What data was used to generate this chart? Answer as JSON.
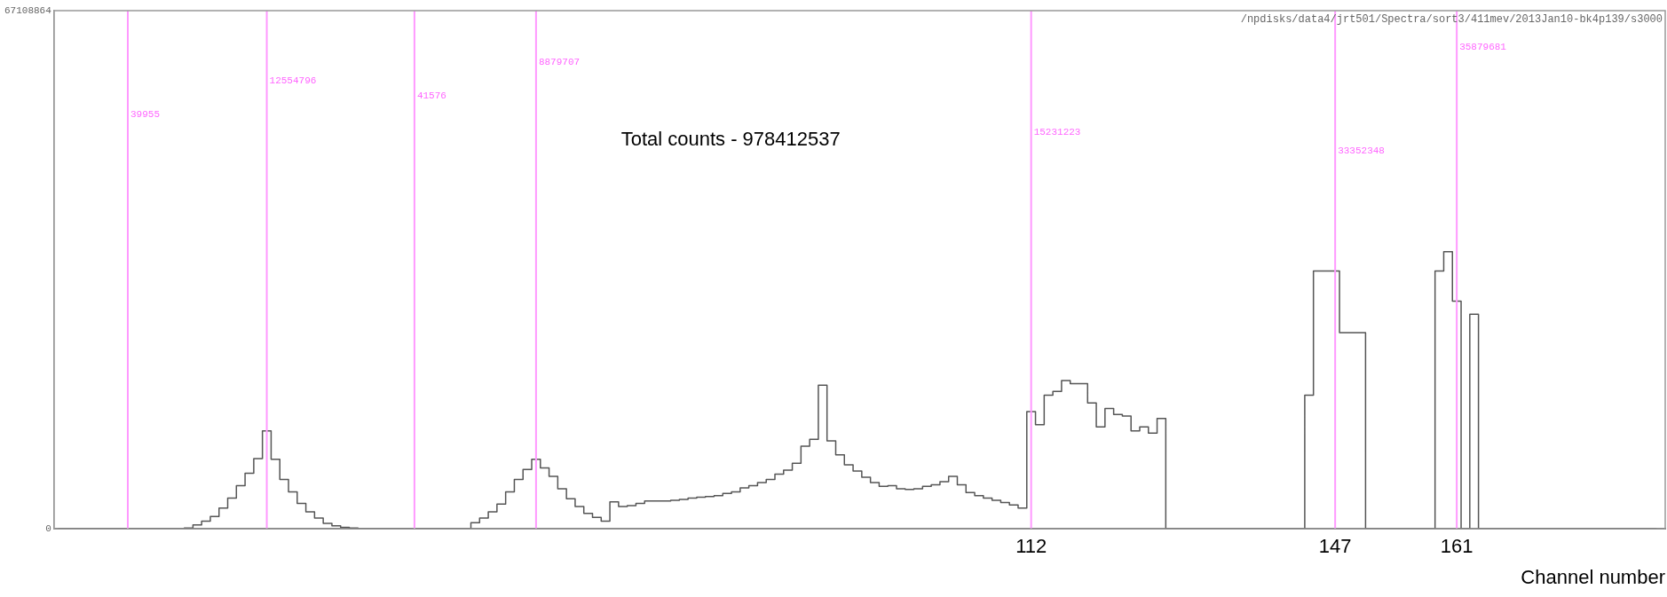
{
  "chart_data": {
    "type": "step",
    "xlabel": "Channel number",
    "color": "#555555",
    "grid": false,
    "legend": false,
    "xlim": [
      -0.5,
      185
    ],
    "xticks": [
      112,
      147,
      161
    ],
    "ylim": [
      0,
      67108864
    ],
    "yticks": [
      0,
      67108864
    ],
    "x": [
      0,
      1,
      2,
      3,
      4,
      5,
      6,
      7,
      8,
      9,
      10,
      11,
      12,
      13,
      14,
      15,
      16,
      17,
      18,
      19,
      20,
      21,
      22,
      23,
      24,
      25,
      26,
      27,
      28,
      29,
      30,
      31,
      32,
      33,
      34,
      35,
      36,
      37,
      38,
      39,
      40,
      41,
      42,
      43,
      44,
      45,
      46,
      47,
      48,
      49,
      50,
      51,
      52,
      53,
      54,
      55,
      56,
      57,
      58,
      59,
      60,
      61,
      62,
      63,
      64,
      65,
      66,
      67,
      68,
      69,
      70,
      71,
      72,
      73,
      74,
      75,
      76,
      77,
      78,
      79,
      80,
      81,
      82,
      83,
      84,
      85,
      86,
      87,
      88,
      89,
      90,
      91,
      92,
      93,
      94,
      95,
      96,
      97,
      98,
      99,
      100,
      101,
      102,
      103,
      104,
      105,
      106,
      107,
      108,
      109,
      110,
      111,
      112,
      113,
      114,
      115,
      116,
      117,
      118,
      119,
      120,
      121,
      122,
      123,
      124,
      125,
      126,
      127,
      128,
      129,
      130,
      131,
      132,
      133,
      134,
      135,
      136,
      137,
      138,
      139,
      140,
      141,
      142,
      143,
      144,
      145,
      146,
      147,
      148,
      149,
      150,
      151,
      152,
      153,
      154,
      155,
      156,
      157,
      158,
      159,
      160,
      161,
      162,
      163,
      164,
      165,
      166,
      167,
      168,
      169,
      170,
      171,
      172,
      173,
      174,
      175,
      176,
      177,
      178,
      179,
      180,
      181,
      182,
      183,
      184
    ],
    "values": [
      0,
      0,
      0,
      0,
      0,
      0,
      0,
      0,
      0,
      0,
      0,
      0,
      0,
      0,
      0,
      100000,
      500000,
      1000000,
      1600000,
      2700000,
      4000000,
      5600000,
      7200000,
      9100000,
      12700000,
      9000000,
      6400000,
      4800000,
      3300000,
      2200000,
      1400000,
      700000,
      400000,
      200000,
      100000,
      0,
      0,
      0,
      0,
      0,
      0,
      0,
      0,
      0,
      0,
      0,
      0,
      0,
      800000,
      1400000,
      2200000,
      3200000,
      4800000,
      6400000,
      7700000,
      9000000,
      7900000,
      6800000,
      5200000,
      3900000,
      2900000,
      2000000,
      1500000,
      1000000,
      3500000,
      2900000,
      3000000,
      3300000,
      3600000,
      3600000,
      3600000,
      3700000,
      3800000,
      4000000,
      4100000,
      4200000,
      4300000,
      4600000,
      4800000,
      5300000,
      5600000,
      6000000,
      6400000,
      7100000,
      7600000,
      8500000,
      10700000,
      11600000,
      18600000,
      11400000,
      9600000,
      8300000,
      7500000,
      6700000,
      6000000,
      5500000,
      5600000,
      5200000,
      5100000,
      5200000,
      5500000,
      5700000,
      6100000,
      6800000,
      5700000,
      4700000,
      4300000,
      4000000,
      3700000,
      3400000,
      3100000,
      2700000,
      15200000,
      13500000,
      17300000,
      17800000,
      19200000,
      18800000,
      18800000,
      16300000,
      13200000,
      15600000,
      14800000,
      14600000,
      12700000,
      13200000,
      12400000,
      14300000,
      0,
      0,
      0,
      0,
      0,
      0,
      0,
      0,
      0,
      0,
      0,
      0,
      0,
      0,
      0,
      0,
      17300000,
      33400000,
      33400000,
      33400000,
      25400000,
      25400000,
      25400000,
      0,
      0,
      0,
      0,
      0,
      0,
      0,
      0,
      33400000,
      35900000,
      29500000,
      0,
      27800000,
      0,
      0,
      0,
      0,
      0,
      0,
      0,
      0,
      0,
      0,
      0,
      0,
      0,
      0,
      0,
      0,
      0,
      0,
      0,
      0,
      0
    ],
    "ref_lines": [
      {
        "axis": "x",
        "value": 8,
        "color": "#ff99ff"
      },
      {
        "axis": "x",
        "value": 24,
        "color": "#ff99ff"
      },
      {
        "axis": "x",
        "value": 41,
        "color": "#ff99ff"
      },
      {
        "axis": "x",
        "value": 55,
        "color": "#ff99ff"
      },
      {
        "axis": "x",
        "value": 112,
        "color": "#ff99ff"
      },
      {
        "axis": "x",
        "value": 147,
        "color": "#ff99ff"
      },
      {
        "axis": "x",
        "value": 161,
        "color": "#ff99ff"
      }
    ],
    "annotations": [
      "Total counts - 978412537",
      "/npdisks/data4/jrt501/Spectra/sort3/411mev/2013Jan10-bk4p139/s3000",
      {
        "text": "39955",
        "x": 8
      },
      {
        "text": "12554796",
        "x": 24
      },
      {
        "text": "41576",
        "x": 41
      },
      {
        "text": "8879707",
        "x": 55
      },
      {
        "text": "15231223",
        "x": 112
      },
      {
        "text": "33352348",
        "x": 147
      },
      {
        "text": "35879681",
        "x": 161
      }
    ]
  }
}
